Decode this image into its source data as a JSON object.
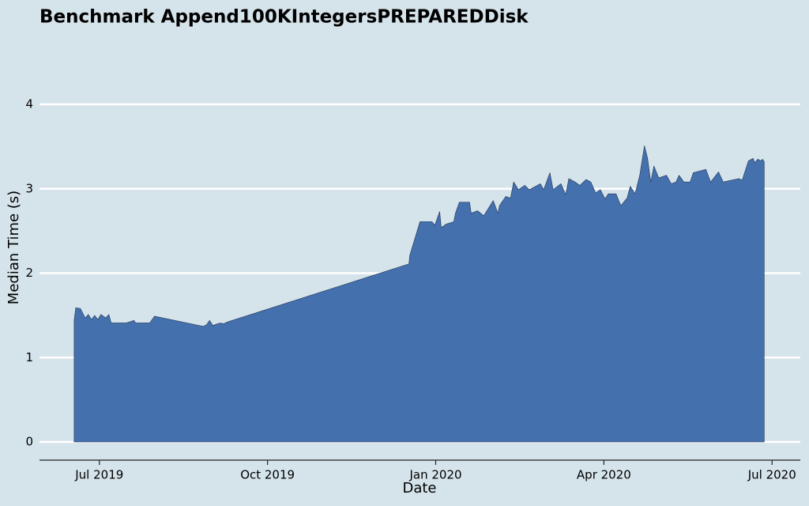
{
  "chart_data": {
    "type": "area",
    "title": "Benchmark Append100KIntegersPREPAREDDisk",
    "x_label": "Date",
    "y_label": "Median Time (s)",
    "color": "#4470ad",
    "grid": true,
    "xlim": [
      2019.411,
      2020.542
    ],
    "ylim": [
      -0.2,
      4.6
    ],
    "xticks": [
      {
        "value": 2019.5,
        "label": "Jul 2019"
      },
      {
        "value": 2019.75,
        "label": "Oct 2019"
      },
      {
        "value": 2020.0,
        "label": "Jan 2020"
      },
      {
        "value": 2020.25,
        "label": "Apr 2020"
      },
      {
        "value": 2020.5,
        "label": "Jul 2020"
      }
    ],
    "yticks": [
      0,
      1,
      2,
      3,
      4
    ],
    "x": [
      2019.4625,
      2019.4649,
      2019.4719,
      2019.4789,
      2019.4836,
      2019.4883,
      2019.493,
      2019.4977,
      2019.5023,
      2019.5094,
      2019.5141,
      2019.5176,
      2019.5398,
      2019.5515,
      2019.5539,
      2019.5749,
      2019.582,
      2019.6546,
      2019.6593,
      2019.6639,
      2019.6686,
      2019.6756,
      2019.6803,
      2019.685,
      2019.6897,
      2019.9602,
      2019.9614,
      2019.9766,
      2019.9941,
      2019.9988,
      2020.0059,
      2020.0082,
      2020.0152,
      2020.0269,
      2020.0293,
      2020.0351,
      2020.0504,
      2020.0527,
      2020.0621,
      2020.0714,
      2020.0855,
      2020.0925,
      2020.0948,
      2020.1042,
      2020.1112,
      2020.1159,
      2020.123,
      2020.1323,
      2020.1393,
      2020.1487,
      2020.1557,
      2020.1604,
      2020.1698,
      2020.1745,
      2020.1862,
      2020.1932,
      2020.1979,
      2020.2073,
      2020.2143,
      2020.2237,
      2020.2307,
      2020.2377,
      2020.2447,
      2020.2518,
      2020.2564,
      2020.2681,
      2020.2752,
      2020.2845,
      2020.2892,
      2020.2963,
      2020.3033,
      2020.3103,
      2020.315,
      2020.3197,
      2020.3244,
      2020.3314,
      2020.3431,
      2020.3501,
      2020.3571,
      2020.3618,
      2020.3689,
      2020.3782,
      2020.3829,
      2020.4016,
      2020.4087,
      2020.4204,
      2020.4274,
      2020.4508,
      2020.4555,
      2020.4649,
      2020.4719,
      2020.4742,
      2020.4789,
      2020.4836,
      2020.4859,
      2020.4883
    ],
    "values": [
      1.44,
      1.59,
      1.58,
      1.47,
      1.51,
      1.45,
      1.5,
      1.45,
      1.51,
      1.47,
      1.51,
      1.41,
      1.41,
      1.44,
      1.41,
      1.41,
      1.49,
      1.37,
      1.39,
      1.44,
      1.38,
      1.4,
      1.41,
      1.4,
      1.42,
      2.11,
      2.21,
      2.61,
      2.61,
      2.57,
      2.73,
      2.54,
      2.58,
      2.61,
      2.71,
      2.84,
      2.84,
      2.71,
      2.74,
      2.68,
      2.86,
      2.71,
      2.8,
      2.91,
      2.89,
      3.08,
      2.99,
      3.04,
      2.99,
      3.03,
      3.06,
      2.99,
      3.19,
      2.99,
      3.06,
      2.93,
      3.12,
      3.08,
      3.04,
      3.11,
      3.08,
      2.95,
      2.99,
      2.88,
      2.94,
      2.94,
      2.8,
      2.89,
      3.03,
      2.94,
      3.16,
      3.51,
      3.36,
      3.08,
      3.27,
      3.13,
      3.16,
      3.06,
      3.08,
      3.16,
      3.08,
      3.08,
      3.19,
      3.23,
      3.08,
      3.2,
      3.08,
      3.12,
      3.1,
      3.33,
      3.36,
      3.31,
      3.35,
      3.33,
      3.35,
      3.32
    ]
  }
}
